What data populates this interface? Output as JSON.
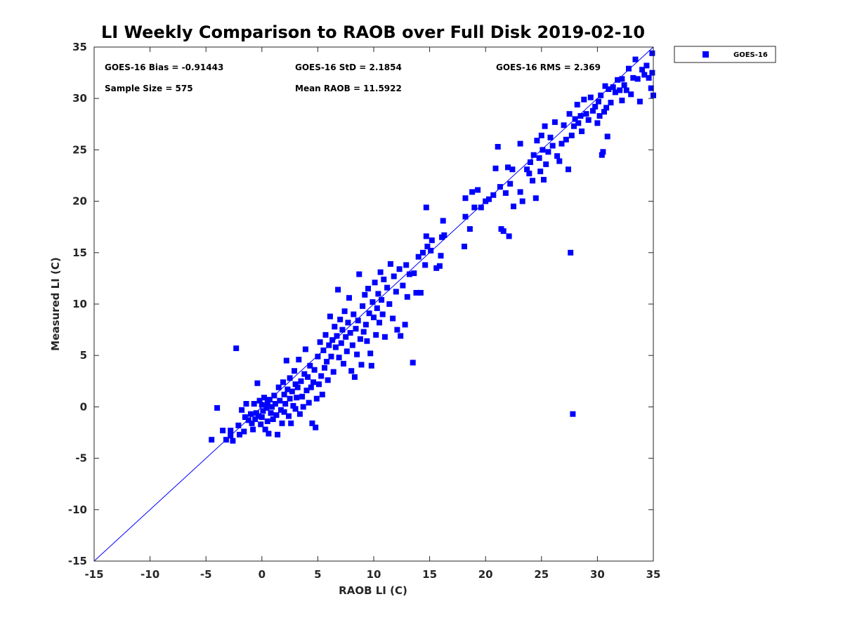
{
  "colors": {
    "series": "#0000ff",
    "axis": "#262626",
    "background": "#ffffff"
  },
  "stats": {
    "bias": "GOES-16 Bias = -0.91443",
    "std": "GOES-16 StD = 2.1854",
    "rms": "GOES-16 RMS = 2.369",
    "sample": "Sample Size = 575",
    "mean": "Mean RAOB = 11.5922"
  },
  "chart_data": {
    "type": "scatter",
    "title": "LI Weekly Comparison to RAOB over Full Disk 2019-02-10",
    "xlabel": "RAOB LI (C)",
    "ylabel": "Measured LI (C)",
    "xlim": [
      -15,
      35
    ],
    "ylim": [
      -15,
      35
    ],
    "xticks": [
      -15,
      -10,
      -5,
      0,
      5,
      10,
      15,
      20,
      25,
      30,
      35
    ],
    "yticks": [
      -15,
      -10,
      -5,
      0,
      5,
      10,
      15,
      20,
      25,
      30,
      35
    ],
    "grid": false,
    "legend": {
      "position": "outside-top-right",
      "entries": [
        "GOES-16"
      ]
    },
    "reference_line": {
      "from": [
        -15,
        -15
      ],
      "to": [
        35,
        35
      ]
    },
    "series": [
      {
        "name": "GOES-16",
        "marker": "square",
        "color": "#0000ff",
        "points": [
          [
            -4.5,
            -3.2
          ],
          [
            -4.0,
            -0.1
          ],
          [
            -3.5,
            -2.3
          ],
          [
            -3.2,
            -3.2
          ],
          [
            -2.8,
            -2.8
          ],
          [
            -2.8,
            -2.3
          ],
          [
            -2.6,
            -3.3
          ],
          [
            -2.3,
            5.7
          ],
          [
            -2.1,
            -1.8
          ],
          [
            -2.0,
            -2.7
          ],
          [
            -1.8,
            -0.3
          ],
          [
            -1.6,
            -2.4
          ],
          [
            -1.5,
            -1.0
          ],
          [
            -1.4,
            0.3
          ],
          [
            -1.2,
            -1.3
          ],
          [
            -1.0,
            -0.7
          ],
          [
            -0.9,
            -1.6
          ],
          [
            -0.8,
            -2.2
          ],
          [
            -0.7,
            0.3
          ],
          [
            -0.6,
            -1.2
          ],
          [
            -0.5,
            -0.6
          ],
          [
            -0.4,
            2.3
          ],
          [
            -0.3,
            -0.9
          ],
          [
            -0.2,
            0.6
          ],
          [
            -0.1,
            -1.7
          ],
          [
            0.0,
            0.2
          ],
          [
            0.0,
            -1.0
          ],
          [
            0.1,
            -0.4
          ],
          [
            0.2,
            0.9
          ],
          [
            0.3,
            -2.2
          ],
          [
            0.4,
            -0.1
          ],
          [
            0.5,
            0.4
          ],
          [
            0.5,
            -1.4
          ],
          [
            0.6,
            -2.6
          ],
          [
            0.7,
            0.7
          ],
          [
            0.8,
            -0.6
          ],
          [
            0.9,
            0.0
          ],
          [
            1.0,
            -1.2
          ],
          [
            1.1,
            1.1
          ],
          [
            1.2,
            0.3
          ],
          [
            1.3,
            -0.8
          ],
          [
            1.4,
            -2.7
          ],
          [
            1.5,
            1.9
          ],
          [
            1.6,
            0.6
          ],
          [
            1.7,
            -0.3
          ],
          [
            1.8,
            -1.6
          ],
          [
            1.9,
            2.4
          ],
          [
            2.0,
            1.2
          ],
          [
            2.0,
            -0.5
          ],
          [
            2.1,
            0.3
          ],
          [
            2.2,
            4.5
          ],
          [
            2.3,
            1.7
          ],
          [
            2.4,
            -0.9
          ],
          [
            2.5,
            0.8
          ],
          [
            2.5,
            2.8
          ],
          [
            2.6,
            -1.6
          ],
          [
            2.7,
            1.5
          ],
          [
            2.8,
            0.1
          ],
          [
            2.9,
            3.5
          ],
          [
            3.0,
            2.2
          ],
          [
            3.0,
            -0.2
          ],
          [
            3.1,
            0.9
          ],
          [
            3.2,
            1.9
          ],
          [
            3.3,
            4.6
          ],
          [
            3.4,
            -0.7
          ],
          [
            3.5,
            2.5
          ],
          [
            3.6,
            1.0
          ],
          [
            3.7,
            0.0
          ],
          [
            3.8,
            3.2
          ],
          [
            3.9,
            5.6
          ],
          [
            4.0,
            1.6
          ],
          [
            4.1,
            2.9
          ],
          [
            4.2,
            0.4
          ],
          [
            4.3,
            4.0
          ],
          [
            4.4,
            1.9
          ],
          [
            4.5,
            -1.6
          ],
          [
            4.6,
            2.4
          ],
          [
            4.7,
            3.6
          ],
          [
            4.8,
            -2.0
          ],
          [
            4.9,
            0.8
          ],
          [
            5.0,
            4.9
          ],
          [
            5.1,
            2.2
          ],
          [
            5.2,
            6.3
          ],
          [
            5.3,
            3.0
          ],
          [
            5.4,
            1.2
          ],
          [
            5.5,
            5.5
          ],
          [
            5.6,
            3.8
          ],
          [
            5.7,
            7.0
          ],
          [
            5.8,
            4.4
          ],
          [
            5.9,
            2.6
          ],
          [
            6.0,
            6.0
          ],
          [
            6.1,
            8.8
          ],
          [
            6.2,
            4.9
          ],
          [
            6.3,
            6.5
          ],
          [
            6.4,
            3.4
          ],
          [
            6.5,
            7.8
          ],
          [
            6.6,
            5.8
          ],
          [
            6.7,
            6.9
          ],
          [
            6.8,
            11.4
          ],
          [
            6.9,
            4.8
          ],
          [
            7.0,
            8.5
          ],
          [
            7.1,
            6.2
          ],
          [
            7.2,
            7.5
          ],
          [
            7.3,
            4.2
          ],
          [
            7.4,
            9.3
          ],
          [
            7.5,
            6.8
          ],
          [
            7.6,
            5.4
          ],
          [
            7.7,
            8.2
          ],
          [
            7.8,
            10.6
          ],
          [
            7.9,
            7.2
          ],
          [
            8.0,
            3.5
          ],
          [
            8.1,
            6.0
          ],
          [
            8.2,
            9.0
          ],
          [
            8.3,
            2.9
          ],
          [
            8.4,
            7.6
          ],
          [
            8.5,
            5.1
          ],
          [
            8.6,
            8.4
          ],
          [
            8.7,
            12.9
          ],
          [
            8.8,
            6.6
          ],
          [
            8.9,
            4.1
          ],
          [
            9.0,
            9.8
          ],
          [
            9.1,
            7.3
          ],
          [
            9.2,
            10.9
          ],
          [
            9.3,
            8.0
          ],
          [
            9.4,
            6.4
          ],
          [
            9.5,
            11.5
          ],
          [
            9.6,
            9.1
          ],
          [
            9.7,
            5.2
          ],
          [
            9.8,
            4.0
          ],
          [
            9.9,
            10.2
          ],
          [
            10.0,
            8.7
          ],
          [
            10.1,
            12.1
          ],
          [
            10.2,
            7.0
          ],
          [
            10.3,
            9.6
          ],
          [
            10.4,
            11.0
          ],
          [
            10.5,
            8.2
          ],
          [
            10.6,
            13.1
          ],
          [
            10.7,
            10.4
          ],
          [
            10.8,
            9.0
          ],
          [
            10.9,
            12.4
          ],
          [
            11.0,
            6.8
          ],
          [
            11.2,
            11.6
          ],
          [
            11.4,
            10.0
          ],
          [
            11.5,
            13.9
          ],
          [
            11.7,
            8.6
          ],
          [
            11.8,
            12.7
          ],
          [
            12.0,
            11.2
          ],
          [
            12.1,
            7.5
          ],
          [
            12.3,
            13.4
          ],
          [
            12.4,
            6.9
          ],
          [
            12.6,
            11.8
          ],
          [
            12.8,
            8.0
          ],
          [
            12.9,
            13.8
          ],
          [
            13.0,
            10.7
          ],
          [
            13.2,
            12.9
          ],
          [
            13.5,
            4.3
          ],
          [
            13.6,
            13.0
          ],
          [
            13.8,
            11.1
          ],
          [
            14.0,
            14.6
          ],
          [
            14.2,
            11.1
          ],
          [
            14.4,
            15.0
          ],
          [
            14.6,
            13.8
          ],
          [
            14.7,
            16.6
          ],
          [
            14.7,
            19.4
          ],
          [
            14.8,
            15.6
          ],
          [
            15.1,
            15.2
          ],
          [
            15.2,
            16.2
          ],
          [
            15.6,
            13.5
          ],
          [
            15.9,
            13.7
          ],
          [
            16.0,
            14.7
          ],
          [
            16.1,
            16.5
          ],
          [
            16.2,
            18.1
          ],
          [
            16.3,
            16.7
          ],
          [
            18.1,
            15.6
          ],
          [
            18.2,
            18.5
          ],
          [
            18.2,
            20.3
          ],
          [
            18.6,
            17.3
          ],
          [
            18.8,
            20.9
          ],
          [
            19.0,
            19.4
          ],
          [
            19.3,
            21.1
          ],
          [
            19.6,
            19.4
          ],
          [
            20.0,
            20.0
          ],
          [
            20.3,
            20.2
          ],
          [
            20.7,
            20.6
          ],
          [
            20.9,
            23.2
          ],
          [
            21.1,
            25.3
          ],
          [
            21.3,
            21.4
          ],
          [
            21.4,
            17.3
          ],
          [
            21.6,
            17.1
          ],
          [
            21.8,
            20.8
          ],
          [
            22.0,
            23.3
          ],
          [
            22.1,
            16.6
          ],
          [
            22.2,
            21.7
          ],
          [
            22.4,
            23.1
          ],
          [
            22.5,
            19.5
          ],
          [
            23.1,
            25.6
          ],
          [
            23.1,
            20.9
          ],
          [
            23.3,
            20.0
          ],
          [
            23.7,
            23.1
          ],
          [
            23.9,
            22.7
          ],
          [
            24.0,
            23.8
          ],
          [
            24.2,
            22.0
          ],
          [
            24.3,
            24.5
          ],
          [
            24.5,
            20.3
          ],
          [
            24.6,
            25.9
          ],
          [
            24.8,
            24.2
          ],
          [
            24.9,
            22.9
          ],
          [
            25.0,
            26.4
          ],
          [
            25.1,
            25.0
          ],
          [
            25.2,
            22.1
          ],
          [
            25.3,
            27.3
          ],
          [
            25.4,
            23.6
          ],
          [
            25.6,
            24.8
          ],
          [
            25.8,
            26.2
          ],
          [
            26.0,
            25.4
          ],
          [
            26.2,
            27.7
          ],
          [
            26.4,
            24.4
          ],
          [
            26.6,
            23.9
          ],
          [
            26.8,
            25.6
          ],
          [
            27.0,
            27.4
          ],
          [
            27.2,
            26.0
          ],
          [
            27.4,
            23.1
          ],
          [
            27.5,
            28.5
          ],
          [
            27.6,
            15.0
          ],
          [
            27.7,
            26.4
          ],
          [
            27.8,
            -0.7
          ],
          [
            27.9,
            27.3
          ],
          [
            28.0,
            28.0
          ],
          [
            28.2,
            29.4
          ],
          [
            28.3,
            27.6
          ],
          [
            28.5,
            28.3
          ],
          [
            28.6,
            26.8
          ],
          [
            28.8,
            29.9
          ],
          [
            29.0,
            28.5
          ],
          [
            29.2,
            27.9
          ],
          [
            29.4,
            30.1
          ],
          [
            29.6,
            28.8
          ],
          [
            29.8,
            29.2
          ],
          [
            30.0,
            27.6
          ],
          [
            30.1,
            29.7
          ],
          [
            30.2,
            28.3
          ],
          [
            30.3,
            30.3
          ],
          [
            30.4,
            24.5
          ],
          [
            30.5,
            24.8
          ],
          [
            30.6,
            28.7
          ],
          [
            30.7,
            31.2
          ],
          [
            30.8,
            29.1
          ],
          [
            30.9,
            26.3
          ],
          [
            31.0,
            30.9
          ],
          [
            31.2,
            29.6
          ],
          [
            31.4,
            31.1
          ],
          [
            31.6,
            30.6
          ],
          [
            31.8,
            31.8
          ],
          [
            32.0,
            30.8
          ],
          [
            32.2,
            31.9
          ],
          [
            32.2,
            29.8
          ],
          [
            32.4,
            31.3
          ],
          [
            32.6,
            30.8
          ],
          [
            32.8,
            32.9
          ],
          [
            33.0,
            30.4
          ],
          [
            33.2,
            32.0
          ],
          [
            33.4,
            33.8
          ],
          [
            33.6,
            31.9
          ],
          [
            33.8,
            29.7
          ],
          [
            34.0,
            32.8
          ],
          [
            34.2,
            32.3
          ],
          [
            34.4,
            33.2
          ],
          [
            34.6,
            32.0
          ],
          [
            34.8,
            31.0
          ],
          [
            34.9,
            34.4
          ],
          [
            34.9,
            32.5
          ],
          [
            35.0,
            30.3
          ]
        ]
      }
    ]
  }
}
